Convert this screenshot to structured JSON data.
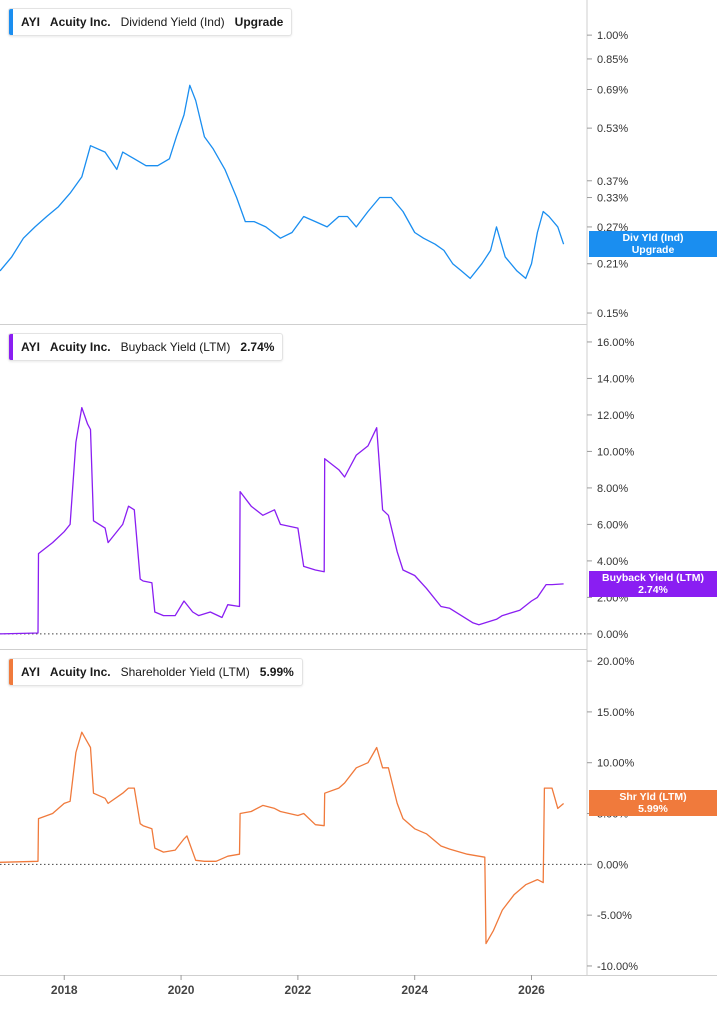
{
  "chart_data": [
    {
      "type": "line",
      "ticker": "AYI",
      "company": "Acuity Inc.",
      "metric": "Dividend Yield (Ind)",
      "current_value": "Upgrade",
      "color": "#1a8ef0",
      "scale": "log",
      "ylim": [
        0.145,
        1.22
      ],
      "yticks": [
        1.0,
        0.85,
        0.69,
        0.53,
        0.37,
        0.33,
        0.27,
        0.21,
        0.15
      ],
      "ytick_labels": [
        "1.00%",
        "0.85%",
        "0.69%",
        "0.53%",
        "0.37%",
        "0.33%",
        "0.27%",
        "0.21%",
        "0.15%"
      ],
      "end_label": [
        "Div Yld (Ind)",
        "Upgrade"
      ],
      "series": [
        {
          "x": [
            2016.9,
            2017.1,
            2017.3,
            2017.5,
            2017.7,
            2017.9,
            2018.1,
            2018.3,
            2018.45,
            2018.7,
            2018.9,
            2019.0,
            2019.2,
            2019.4,
            2019.6,
            2019.8,
            2019.92,
            2020.05,
            2020.15,
            2020.25,
            2020.4,
            2020.55,
            2020.75,
            2020.95,
            2021.1,
            2021.25,
            2021.45,
            2021.7,
            2021.9,
            2022.1,
            2022.3,
            2022.5,
            2022.7,
            2022.85,
            2023.0,
            2023.2,
            2023.4,
            2023.6,
            2023.8,
            2024.0,
            2024.15,
            2024.35,
            2024.5,
            2024.65,
            2024.8,
            2024.95,
            2025.15,
            2025.3,
            2025.4,
            2025.55,
            2025.75,
            2025.9,
            2026.0,
            2026.1,
            2026.2,
            2026.3,
            2026.45,
            2026.55
          ],
          "y": [
            0.2,
            0.22,
            0.25,
            0.27,
            0.29,
            0.31,
            0.34,
            0.38,
            0.47,
            0.45,
            0.4,
            0.45,
            0.43,
            0.41,
            0.41,
            0.43,
            0.5,
            0.58,
            0.71,
            0.64,
            0.5,
            0.46,
            0.4,
            0.33,
            0.28,
            0.28,
            0.27,
            0.25,
            0.26,
            0.29,
            0.28,
            0.27,
            0.29,
            0.29,
            0.27,
            0.3,
            0.33,
            0.33,
            0.3,
            0.26,
            0.25,
            0.24,
            0.23,
            0.21,
            0.2,
            0.19,
            0.21,
            0.23,
            0.27,
            0.22,
            0.2,
            0.19,
            0.21,
            0.26,
            0.3,
            0.29,
            0.27,
            0.24
          ]
        }
      ]
    },
    {
      "type": "line",
      "ticker": "AYI",
      "company": "Acuity Inc.",
      "metric": "Buyback Yield (LTM)",
      "current_value": "2.74%",
      "color": "#8a1ef2",
      "ylim": [
        -0.5,
        16.6
      ],
      "yticks": [
        16,
        14,
        12,
        10,
        8,
        6,
        4,
        2,
        0
      ],
      "ytick_labels": [
        "16.00%",
        "14.00%",
        "12.00%",
        "10.00%",
        "8.00%",
        "6.00%",
        "4.00%",
        "2.00%",
        "0.00%"
      ],
      "end_label": [
        "Buyback Yield (LTM)",
        "2.74%"
      ],
      "series": [
        {
          "x": [
            2016.9,
            2017.55,
            2017.56,
            2017.8,
            2018.0,
            2018.1,
            2018.2,
            2018.3,
            2018.4,
            2018.45,
            2018.5,
            2018.7,
            2018.75,
            2019.0,
            2019.1,
            2019.2,
            2019.3,
            2019.35,
            2019.5,
            2019.55,
            2019.7,
            2019.9,
            2020.05,
            2020.2,
            2020.3,
            2020.5,
            2020.7,
            2020.8,
            2021.0,
            2021.01,
            2021.2,
            2021.4,
            2021.6,
            2021.7,
            2022.0,
            2022.1,
            2022.3,
            2022.45,
            2022.46,
            2022.7,
            2022.8,
            2023.0,
            2023.2,
            2023.35,
            2023.45,
            2023.55,
            2023.7,
            2023.8,
            2024.0,
            2024.2,
            2024.45,
            2024.6,
            2025.0,
            2025.1,
            2025.4,
            2025.5,
            2025.8,
            2026.0,
            2026.1,
            2026.25,
            2026.35,
            2026.55
          ],
          "y": [
            0,
            0.05,
            4.4,
            5.0,
            5.6,
            6.0,
            10.5,
            12.4,
            11.5,
            11.2,
            6.2,
            5.8,
            5.0,
            6.0,
            7.0,
            6.8,
            3.0,
            2.9,
            2.8,
            1.2,
            1.0,
            1.0,
            1.8,
            1.2,
            1.0,
            1.2,
            0.9,
            1.6,
            1.5,
            7.8,
            7.0,
            6.5,
            6.8,
            6.0,
            5.8,
            3.7,
            3.5,
            3.4,
            9.6,
            9.0,
            8.6,
            9.8,
            10.3,
            11.3,
            6.8,
            6.5,
            4.5,
            3.5,
            3.2,
            2.5,
            1.5,
            1.4,
            0.6,
            0.5,
            0.8,
            1.0,
            1.3,
            1.8,
            2.0,
            2.7,
            2.7,
            2.74
          ]
        }
      ]
    },
    {
      "type": "line",
      "ticker": "AYI",
      "company": "Acuity Inc.",
      "metric": "Shareholder Yield (LTM)",
      "current_value": "5.99%",
      "color": "#f07a3c",
      "ylim": [
        -10.3,
        20.5
      ],
      "yticks": [
        20,
        15,
        10,
        5,
        0,
        -5,
        -10
      ],
      "ytick_labels": [
        "20.00%",
        "15.00%",
        "10.00%",
        "5.00%",
        "0.00%",
        "-5.00%",
        "-10.00%"
      ],
      "end_label": [
        "Shr Yld (LTM)",
        "5.99%"
      ],
      "series": [
        {
          "x": [
            2016.9,
            2017.55,
            2017.56,
            2017.8,
            2018.0,
            2018.1,
            2018.2,
            2018.3,
            2018.4,
            2018.45,
            2018.5,
            2018.7,
            2018.75,
            2019.0,
            2019.1,
            2019.2,
            2019.3,
            2019.35,
            2019.5,
            2019.55,
            2019.7,
            2019.9,
            2020.05,
            2020.1,
            2020.25,
            2020.4,
            2020.6,
            2020.8,
            2021.0,
            2021.01,
            2021.2,
            2021.4,
            2021.6,
            2021.7,
            2022.0,
            2022.1,
            2022.3,
            2022.45,
            2022.46,
            2022.7,
            2022.8,
            2023.0,
            2023.2,
            2023.35,
            2023.45,
            2023.55,
            2023.7,
            2023.8,
            2024.0,
            2024.2,
            2024.45,
            2024.6,
            2024.9,
            2025.1,
            2025.2,
            2025.22,
            2025.35,
            2025.5,
            2025.7,
            2025.9,
            2026.1,
            2026.2,
            2026.22,
            2026.35,
            2026.45,
            2026.55
          ],
          "y": [
            0.2,
            0.3,
            4.5,
            5.0,
            6.0,
            6.2,
            11.0,
            13.0,
            12.0,
            11.5,
            7.0,
            6.5,
            6.0,
            7.0,
            7.5,
            7.5,
            4.0,
            3.8,
            3.5,
            1.6,
            1.2,
            1.4,
            2.5,
            2.8,
            0.4,
            0.3,
            0.3,
            0.8,
            1.0,
            5.0,
            5.2,
            5.8,
            5.5,
            5.2,
            4.8,
            5.0,
            3.9,
            3.8,
            7.0,
            7.5,
            8.0,
            9.5,
            10.0,
            11.5,
            9.5,
            9.5,
            6.0,
            4.5,
            3.5,
            3.0,
            1.8,
            1.5,
            1.0,
            0.8,
            0.7,
            -7.8,
            -6.5,
            -4.5,
            -3.0,
            -2.0,
            -1.5,
            -1.8,
            7.5,
            7.5,
            5.5,
            5.99
          ]
        }
      ]
    }
  ],
  "x_axis": {
    "xlim": [
      2016.9,
      2026.95
    ],
    "ticks": [
      2018,
      2020,
      2022,
      2024,
      2026
    ],
    "labels": [
      "2018",
      "2020",
      "2022",
      "2024",
      "2026"
    ]
  }
}
